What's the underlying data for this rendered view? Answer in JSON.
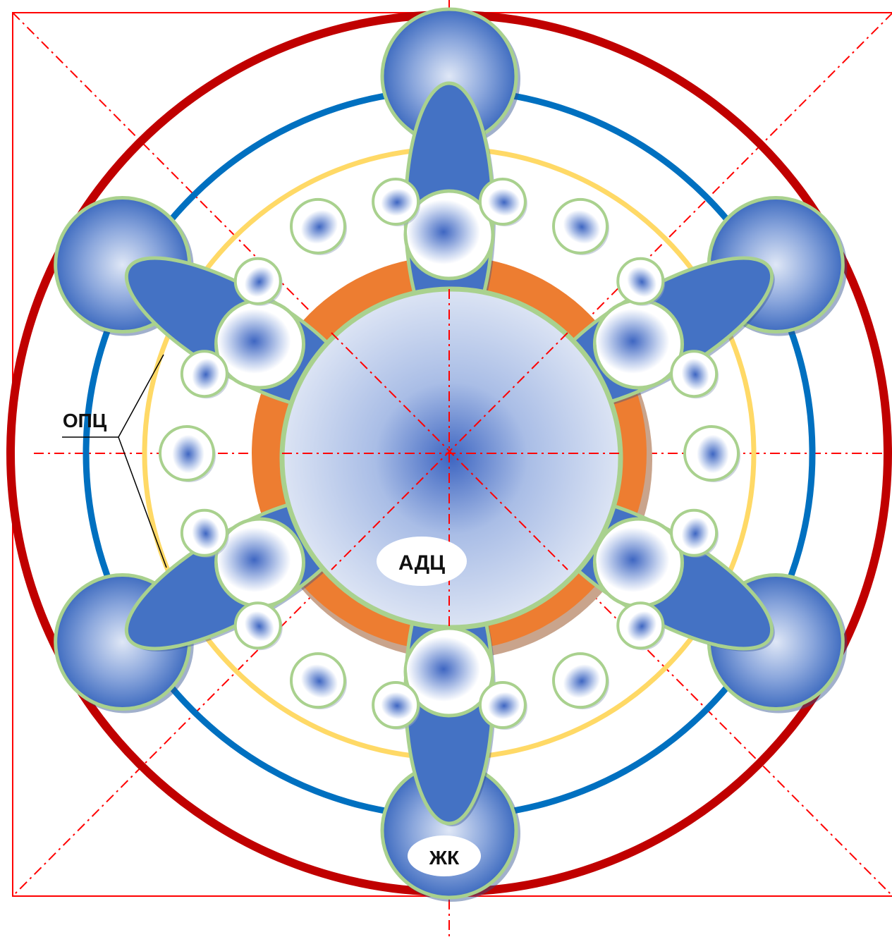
{
  "labels": {
    "center": "АДЦ",
    "bottom": "ЖК",
    "left": "ОПЦ"
  },
  "colors": {
    "outer_ring": "#c00000",
    "blue_ring": "#0070c0",
    "yellow_ring": "#ffd966",
    "orange_ring": "#ed7d31",
    "arm_fill": "#4472c4",
    "outline_green": "#a9d18e",
    "axis_lines": "#ff0000",
    "frame": "#ff0000"
  },
  "structure": {
    "arms": 6,
    "small_bubbles": 18
  }
}
